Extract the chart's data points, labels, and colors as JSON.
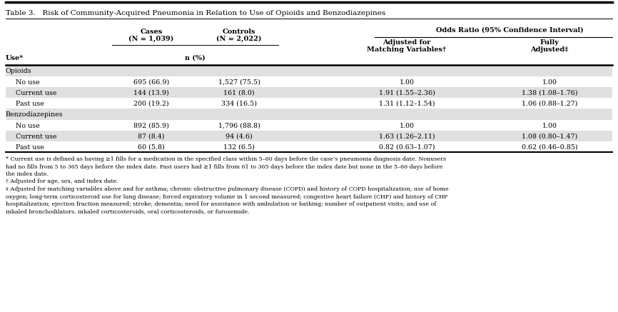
{
  "title": "Table 3.   Risk of Community-Acquired Pneumonia in Relation to Use of Opioids and Benzodiazepines",
  "col_headers": {
    "use": "Use*",
    "cases": [
      "Cases",
      "(N = 1,039)"
    ],
    "controls": [
      "Controls",
      "(N = 2,022)"
    ],
    "n_pct": "n (%)",
    "or_header": "Odds Ratio (95% Confidence Interval)",
    "adjusted": [
      "Adjusted for",
      "Matching Variables†"
    ],
    "fully": [
      "Fully",
      "Adjusted‡"
    ]
  },
  "rows": [
    {
      "category": "Opioids",
      "is_header": true,
      "shaded": true
    },
    {
      "use": "No use",
      "cases": "695 (66.9)",
      "controls": "1,527 (75.5)",
      "adj": "1.00",
      "fully": "1.00",
      "shaded": false
    },
    {
      "use": "Current use",
      "cases": "144 (13.9)",
      "controls": "161 (8.0)",
      "adj": "1.91 (1.55–2.36)",
      "fully": "1.38 (1.08–1.76)",
      "shaded": true
    },
    {
      "use": "Past use",
      "cases": "200 (19.2)",
      "controls": "334 (16.5)",
      "adj": "1.31 (1.12–1.54)",
      "fully": "1.06 (0.88–1.27)",
      "shaded": false
    },
    {
      "category": "Benzodiazepines",
      "is_header": true,
      "shaded": true
    },
    {
      "use": "No use",
      "cases": "892 (85.9)",
      "controls": "1,796 (88.8)",
      "adj": "1.00",
      "fully": "1.00",
      "shaded": false
    },
    {
      "use": "Current use",
      "cases": "87 (8.4)",
      "controls": "94 (4.6)",
      "adj": "1.63 (1.26–2.11)",
      "fully": "1.08 (0.80–1.47)",
      "shaded": true
    },
    {
      "use": "Past use",
      "cases": "60 (5.8)",
      "controls": "132 (6.5)",
      "adj": "0.82 (0.63–1.07)",
      "fully": "0.62 (0.46–0.85)",
      "shaded": false
    }
  ],
  "footnotes": [
    "* Current use is defined as having ≥1 fills for a medication in the specified class within 5–60 days before the case’s pneumonia diagnosis date. Nonusers",
    "had no fills from 5 to 365 days before the index date. Past users had ≥1 fills from 61 to 365 days before the index date but none in the 5–60 days before",
    "the index date.",
    "† Adjusted for age, sex, and index date.",
    "‡ Adjusted for matching variables above and for asthma; chronic obstructive pulmonary disease (COPD) and history of COPD hospitalization; use of home",
    "oxygen; long-term corticosteroid use for lung disease; forced expiratory volume in 1 second measured; congestive heart failure (CHF) and history of CHF",
    "hospitalization; ejection fraction measured; stroke; dementia; need for assistance with ambulation or bathing; number of outpatient visits; and use of",
    "inhaled bronchodilators, inhaled corticosteroids, oral corticosteroids, or furosemide."
  ],
  "shaded_color": "#e0e0e0",
  "line_color": "#000000"
}
